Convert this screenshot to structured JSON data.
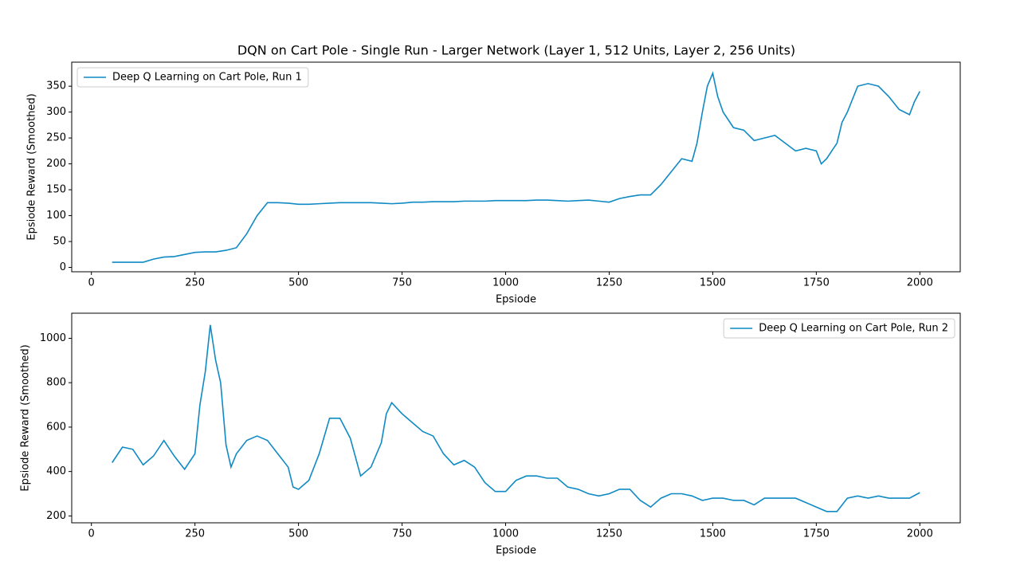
{
  "chart_data": [
    {
      "type": "line",
      "title": "DQN on Cart Pole - Single Run - Larger Network (Layer 1, 512 Units, Layer 2, 256 Units)",
      "x_label": "Epsiode",
      "y_label": "Epsiode Reward (Smoothed)",
      "x": [
        50,
        75,
        100,
        125,
        150,
        175,
        200,
        225,
        250,
        275,
        300,
        325,
        350,
        375,
        400,
        425,
        450,
        475,
        500,
        525,
        550,
        575,
        600,
        625,
        650,
        675,
        700,
        725,
        750,
        775,
        800,
        825,
        850,
        875,
        900,
        925,
        950,
        975,
        1000,
        1025,
        1050,
        1075,
        1100,
        1125,
        1150,
        1175,
        1200,
        1225,
        1250,
        1275,
        1300,
        1325,
        1350,
        1375,
        1400,
        1425,
        1450,
        1462,
        1475,
        1487,
        1500,
        1512,
        1525,
        1550,
        1575,
        1600,
        1625,
        1650,
        1675,
        1700,
        1725,
        1750,
        1762,
        1775,
        1800,
        1812,
        1825,
        1850,
        1875,
        1900,
        1925,
        1950,
        1975,
        1987,
        2000
      ],
      "series": [
        {
          "name": "Deep Q Learning on Cart Pole, Run 1",
          "color": "#0f8ac4",
          "values": [
            10,
            10,
            10,
            10,
            16,
            20,
            21,
            25,
            29,
            30,
            30,
            33,
            38,
            65,
            100,
            125,
            125,
            124,
            122,
            122,
            123,
            124,
            125,
            125,
            125,
            125,
            124,
            123,
            124,
            126,
            126,
            127,
            127,
            127,
            128,
            128,
            128,
            129,
            129,
            129,
            129,
            130,
            130,
            129,
            128,
            129,
            130,
            128,
            126,
            133,
            137,
            140,
            140,
            160,
            185,
            210,
            205,
            240,
            300,
            350,
            375,
            330,
            300,
            270,
            265,
            245,
            250,
            255,
            240,
            225,
            230,
            225,
            200,
            210,
            240,
            280,
            300,
            350,
            355,
            350,
            330,
            305,
            295,
            320,
            340
          ]
        }
      ],
      "xlim": [
        -47.5,
        2097.5
      ],
      "xticks": [
        0,
        250,
        500,
        750,
        1000,
        1250,
        1500,
        1750,
        2000
      ],
      "ylim": [
        -8.4,
        396.4
      ],
      "yticks": [
        0,
        50,
        100,
        150,
        200,
        250,
        300,
        350
      ],
      "grid": false,
      "legend": "upper left"
    },
    {
      "type": "line",
      "x_label": "Epsiode",
      "y_label": "Epsiode Reward (Smoothed)",
      "x": [
        50,
        75,
        100,
        125,
        150,
        175,
        200,
        225,
        250,
        262,
        275,
        287,
        300,
        312,
        325,
        337,
        350,
        375,
        400,
        425,
        450,
        475,
        487,
        500,
        525,
        550,
        575,
        600,
        625,
        650,
        675,
        700,
        712,
        725,
        750,
        775,
        800,
        825,
        850,
        875,
        900,
        925,
        950,
        975,
        1000,
        1025,
        1050,
        1075,
        1100,
        1125,
        1150,
        1175,
        1200,
        1225,
        1250,
        1275,
        1300,
        1325,
        1350,
        1375,
        1400,
        1425,
        1450,
        1475,
        1500,
        1525,
        1550,
        1575,
        1600,
        1625,
        1650,
        1675,
        1700,
        1725,
        1750,
        1775,
        1800,
        1825,
        1850,
        1875,
        1900,
        1925,
        1950,
        1975,
        2000
      ],
      "series": [
        {
          "name": "Deep Q Learning on Cart Pole, Run 2",
          "color": "#0f8ac4",
          "values": [
            440,
            510,
            500,
            430,
            470,
            540,
            470,
            410,
            480,
            700,
            850,
            1060,
            900,
            800,
            520,
            420,
            480,
            540,
            560,
            540,
            480,
            420,
            330,
            320,
            360,
            480,
            640,
            640,
            550,
            380,
            420,
            530,
            660,
            710,
            660,
            620,
            580,
            560,
            480,
            430,
            450,
            420,
            350,
            310,
            310,
            360,
            380,
            380,
            370,
            370,
            330,
            320,
            300,
            290,
            300,
            320,
            320,
            270,
            240,
            280,
            300,
            300,
            290,
            270,
            280,
            280,
            270,
            270,
            250,
            280,
            280,
            280,
            280,
            260,
            240,
            220,
            220,
            280,
            290,
            280,
            290,
            280,
            280,
            280,
            305
          ]
        }
      ],
      "xlim": [
        -47.5,
        2097.5
      ],
      "xticks": [
        0,
        250,
        500,
        750,
        1000,
        1250,
        1500,
        1750,
        2000
      ],
      "ylim": [
        169,
        1113
      ],
      "yticks": [
        200,
        400,
        600,
        800,
        1000
      ],
      "grid": false,
      "legend": "upper right"
    }
  ]
}
